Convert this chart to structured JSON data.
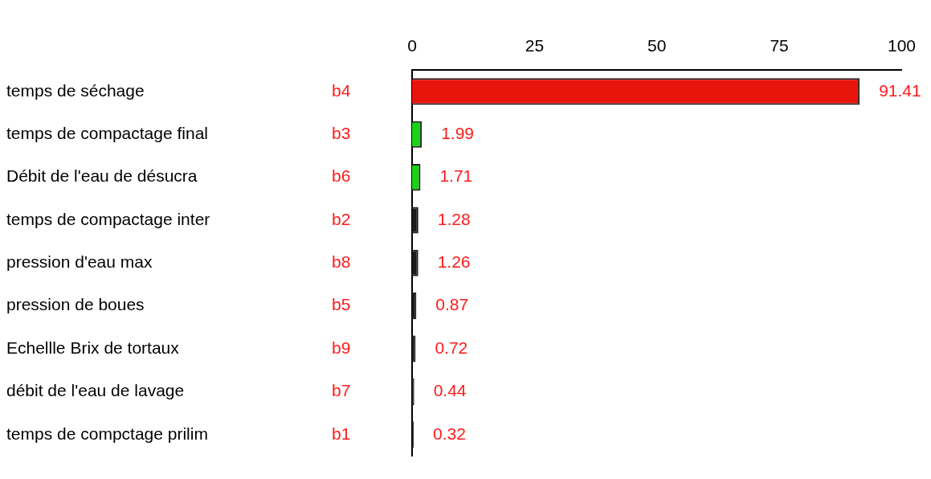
{
  "chart_data": {
    "type": "bar",
    "orientation": "horizontal",
    "categories": [
      "temps de séchage",
      "temps de compactage final",
      "Débit de l'eau de désucra",
      "temps de compactage inter",
      "pression d'eau max",
      "pression de boues",
      "Echellle Brix de tortaux",
      "débit de l'eau de lavage",
      "temps de compctage prilim"
    ],
    "y2_categories": [
      "b4",
      "b3",
      "b6",
      "b2",
      "b8",
      "b5",
      "b9",
      "b7",
      "b1"
    ],
    "values": [
      91.41,
      1.99,
      1.71,
      1.28,
      1.26,
      0.87,
      0.72,
      0.44,
      0.32
    ],
    "colors": [
      "#e8150c",
      "#19d219",
      "#19d219",
      "#1a1a1a",
      "#1a1a1a",
      "#1a1a1a",
      "#1a1a1a",
      "#1a1a1a",
      "#1a1a1a"
    ],
    "x2lim": [
      0,
      100
    ],
    "x2ticks": [
      0,
      25,
      50,
      75,
      100
    ],
    "data_labels": true,
    "grid": false,
    "legend": false
  }
}
